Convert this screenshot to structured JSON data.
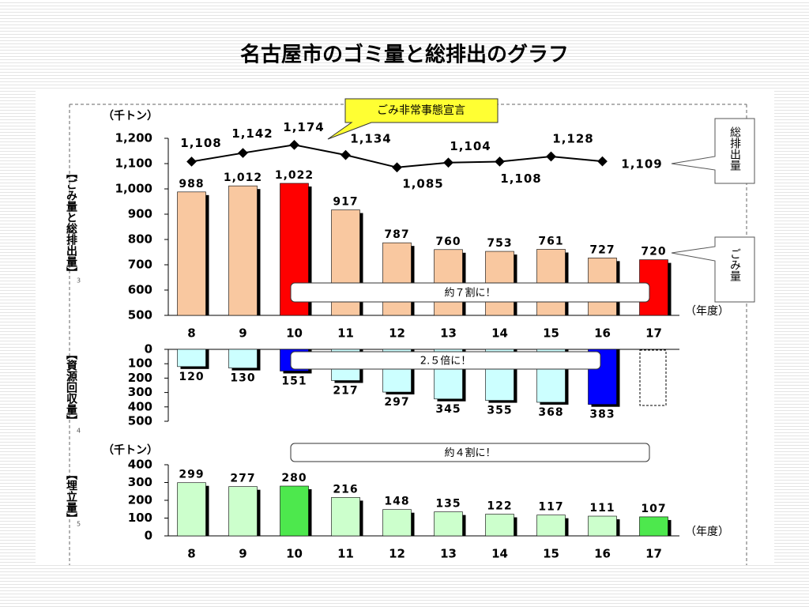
{
  "chart_data": [
    {
      "type": "bar",
      "title": "名古屋市のゴミ量と総排出のグラフ",
      "unit": "（千トン）",
      "y_label": "【ごみ量と総排出量】",
      "page": "3",
      "x_label": "（年度）",
      "categories": [
        "8",
        "9",
        "10",
        "11",
        "12",
        "13",
        "14",
        "15",
        "16",
        "17"
      ],
      "ylim": [
        500,
        1200
      ],
      "yticks": [
        500,
        600,
        700,
        800,
        900,
        {
          "value": 1000,
          "label": "1,000"
        },
        {
          "value": 1100,
          "label": "1,100"
        },
        {
          "value": 1200,
          "label": "1,200"
        }
      ],
      "annotations": [
        "ごみ非常事態宣言",
        "約７割に！"
      ],
      "series": [
        {
          "name": "ごみ量",
          "type": "bar",
          "colors": [
            "#f9c8a0",
            "#f9c8a0",
            "#ff0000",
            "#f9c8a0",
            "#f9c8a0",
            "#f9c8a0",
            "#f9c8a0",
            "#f9c8a0",
            "#f9c8a0",
            "#ff0000"
          ],
          "values": [
            988,
            1012,
            1022,
            917,
            787,
            760,
            753,
            761,
            727,
            720
          ],
          "value_labels": [
            "988",
            "1,012",
            "1,022",
            "917",
            "787",
            "760",
            "753",
            "761",
            "727",
            "720"
          ]
        },
        {
          "name": "総排出量",
          "type": "line",
          "color": "#000000",
          "values": [
            1108,
            1142,
            1174,
            1134,
            1085,
            1104,
            1108,
            1128,
            1109,
            null
          ],
          "value_labels": [
            "1,108",
            "1,142",
            "1,174",
            "1,134",
            "1,085",
            "1,104",
            "1,108",
            "1,128",
            "1,109",
            null
          ]
        }
      ]
    },
    {
      "type": "bar",
      "y_label": "【資源回収量】",
      "page": "4",
      "ylim": [
        0,
        500
      ],
      "y_inverted": true,
      "yticks": [
        0,
        100,
        200,
        300,
        400,
        500
      ],
      "annotations": [
        "2.５倍に！"
      ],
      "series": [
        {
          "type": "bar",
          "colors": [
            "#ccffff",
            "#ccffff",
            "#0000ff",
            "#ccffff",
            "#ccffff",
            "#ccffff",
            "#ccffff",
            "#ccffff",
            "#0000ff",
            "#ccffff"
          ],
          "values": [
            120,
            130,
            151,
            217,
            297,
            345,
            355,
            368,
            383,
            null
          ]
        }
      ]
    },
    {
      "type": "bar",
      "unit": "（千トン）",
      "y_label": "【埋立量】",
      "page": "5",
      "x_label": "（年度）",
      "categories": [
        "8",
        "9",
        "10",
        "11",
        "12",
        "13",
        "14",
        "15",
        "16",
        "17"
      ],
      "ylim": [
        0,
        400
      ],
      "yticks": [
        0,
        100,
        200,
        300,
        400
      ],
      "annotations": [
        "約４割に！"
      ],
      "series": [
        {
          "type": "bar",
          "colors": [
            "#ccffcc",
            "#ccffcc",
            "#4de84d",
            "#ccffcc",
            "#ccffcc",
            "#ccffcc",
            "#ccffcc",
            "#ccffcc",
            "#ccffcc",
            "#4de84d"
          ],
          "values": [
            299,
            277,
            280,
            216,
            148,
            135,
            122,
            117,
            111,
            107
          ]
        }
      ]
    }
  ]
}
